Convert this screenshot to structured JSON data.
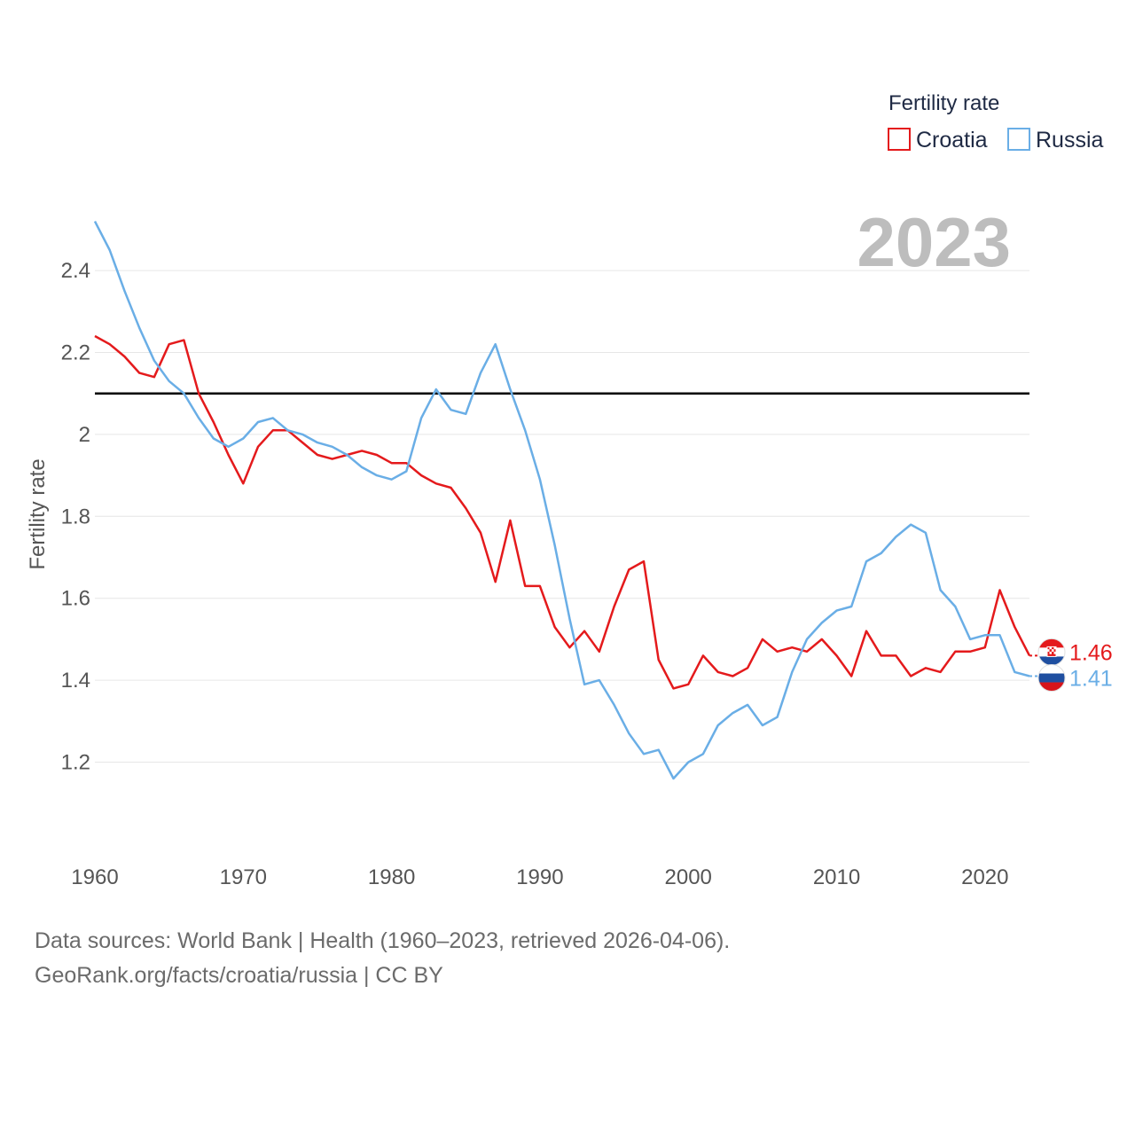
{
  "chart_data": {
    "type": "line",
    "title": "Fertility rate",
    "ylabel": "Fertility rate",
    "xlabel": "",
    "xlim": [
      1960,
      2023
    ],
    "ylim": [
      1.08,
      2.53
    ],
    "x_ticks": [
      1960,
      1970,
      1980,
      1990,
      2000,
      2010,
      2020
    ],
    "y_ticks": [
      1.2,
      1.4,
      1.6,
      1.8,
      2,
      2.2,
      2.4
    ],
    "y_tick_labels": [
      "1.2",
      "1.4",
      "1.6",
      "1.8",
      "2",
      "2.2",
      "2.4"
    ],
    "year_label": "2023",
    "reference_line": {
      "value": 2.1,
      "color": "#000000"
    },
    "legend": {
      "title": "Fertility rate",
      "position": "top-right"
    },
    "x": [
      1960,
      1961,
      1962,
      1963,
      1964,
      1965,
      1966,
      1967,
      1968,
      1969,
      1970,
      1971,
      1972,
      1973,
      1974,
      1975,
      1976,
      1977,
      1978,
      1979,
      1980,
      1981,
      1982,
      1983,
      1984,
      1985,
      1986,
      1987,
      1988,
      1989,
      1990,
      1991,
      1992,
      1993,
      1994,
      1995,
      1996,
      1997,
      1998,
      1999,
      2000,
      2001,
      2002,
      2003,
      2004,
      2005,
      2006,
      2007,
      2008,
      2009,
      2010,
      2011,
      2012,
      2013,
      2014,
      2015,
      2016,
      2017,
      2018,
      2019,
      2020,
      2021,
      2022,
      2023
    ],
    "series": [
      {
        "name": "Croatia",
        "color": "#e41a1c",
        "end_label": "1.46",
        "values": [
          2.24,
          2.22,
          2.19,
          2.15,
          2.14,
          2.22,
          2.23,
          2.1,
          2.03,
          1.95,
          1.88,
          1.97,
          2.01,
          2.01,
          1.98,
          1.95,
          1.94,
          1.95,
          1.96,
          1.95,
          1.93,
          1.93,
          1.9,
          1.88,
          1.87,
          1.82,
          1.76,
          1.64,
          1.79,
          1.63,
          1.63,
          1.53,
          1.48,
          1.52,
          1.47,
          1.58,
          1.67,
          1.69,
          1.45,
          1.38,
          1.39,
          1.46,
          1.42,
          1.41,
          1.43,
          1.5,
          1.47,
          1.48,
          1.47,
          1.5,
          1.46,
          1.41,
          1.52,
          1.46,
          1.46,
          1.41,
          1.43,
          1.42,
          1.47,
          1.47,
          1.48,
          1.62,
          1.53,
          1.46
        ]
      },
      {
        "name": "Russia",
        "color": "#6aaee6",
        "end_label": "1.41",
        "values": [
          2.52,
          2.45,
          2.35,
          2.26,
          2.18,
          2.13,
          2.1,
          2.04,
          1.99,
          1.97,
          1.99,
          2.03,
          2.04,
          2.01,
          2.0,
          1.98,
          1.97,
          1.95,
          1.92,
          1.9,
          1.89,
          1.91,
          2.04,
          2.11,
          2.06,
          2.05,
          2.15,
          2.22,
          2.11,
          2.01,
          1.89,
          1.73,
          1.55,
          1.39,
          1.4,
          1.34,
          1.27,
          1.22,
          1.23,
          1.16,
          1.2,
          1.22,
          1.29,
          1.32,
          1.34,
          1.29,
          1.31,
          1.42,
          1.5,
          1.54,
          1.57,
          1.58,
          1.69,
          1.71,
          1.75,
          1.78,
          1.76,
          1.62,
          1.58,
          1.5,
          1.51,
          1.51,
          1.42,
          1.41
        ]
      }
    ]
  },
  "footer": {
    "source_line": "Data sources: World Bank | Health (1960–2023, retrieved 2026-04-06).",
    "url_line": "GeoRank.org/facts/croatia/russia | CC BY"
  }
}
